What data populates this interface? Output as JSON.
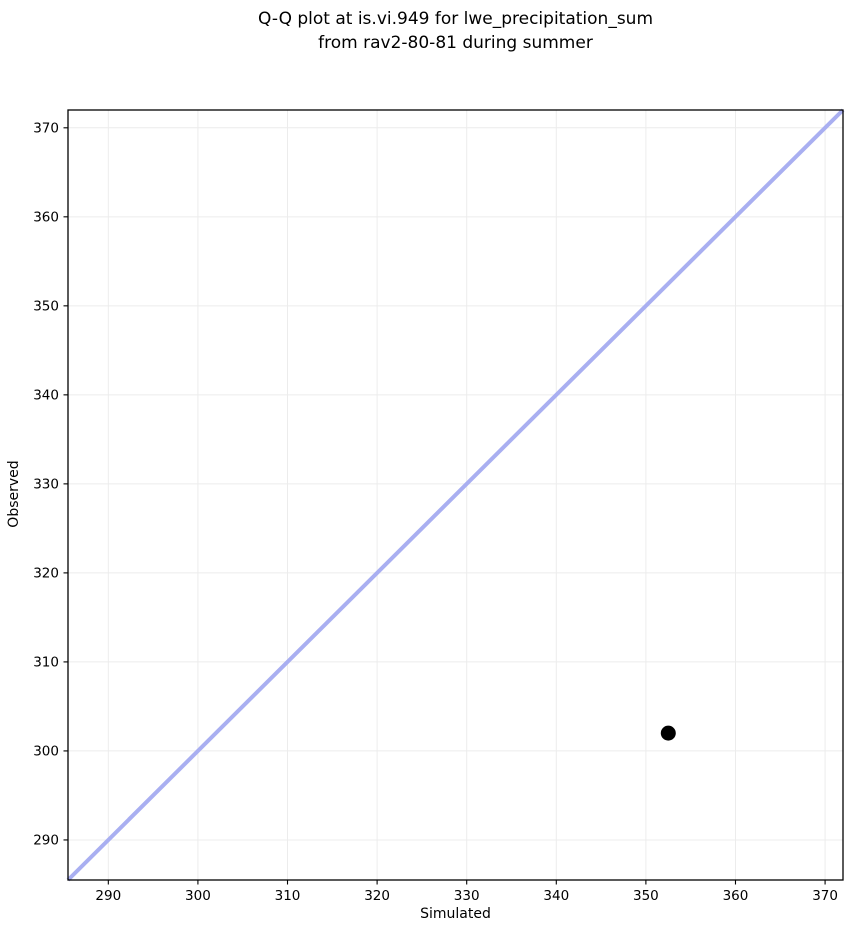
{
  "title": {
    "line1": "Q-Q plot at is.vi.949 for lwe_precipitation_sum",
    "line2": "from rav2-80-81 during summer"
  },
  "chart_data": {
    "type": "scatter",
    "title": "Q-Q plot at is.vi.949 for lwe_precipitation_sum from rav2-80-81 during summer",
    "xlabel": "Simulated",
    "ylabel": "Observed",
    "xlim": [
      285.5,
      372
    ],
    "ylim": [
      285.5,
      372
    ],
    "xticks": [
      290,
      300,
      310,
      320,
      330,
      340,
      350,
      360,
      370
    ],
    "yticks": [
      290,
      300,
      310,
      320,
      330,
      340,
      350,
      360,
      370
    ],
    "grid": true,
    "legend": "none",
    "points": [
      {
        "x": 352.5,
        "y": 302.0
      }
    ],
    "identity_line": {
      "x1": 285.5,
      "y1": 285.5,
      "x2": 372,
      "y2": 372
    },
    "colors": {
      "identity_line": "#a9aff1",
      "point": "#000000",
      "grid": "#ececec",
      "spine": "#000000"
    }
  }
}
